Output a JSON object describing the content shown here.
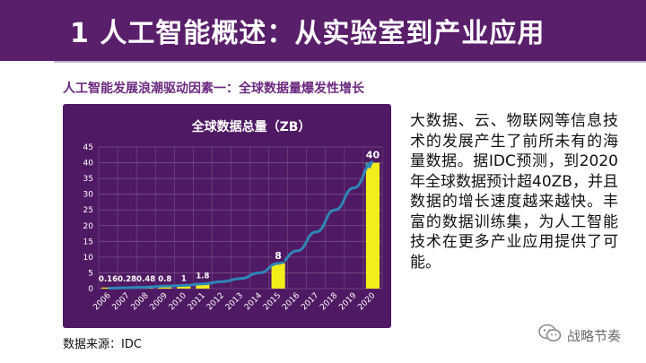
{
  "slide": {
    "title": "1 人工智能概述：从实验室到产业应用",
    "subtitle": "人工智能发展浪潮驱动因素一：全球数据量爆发性增长",
    "description": "大数据、云、物联网等信息技术的发展产生了前所未有的海量数据。据IDC预测，到2020年全球数据预计超40ZB，并且数据的增长速度越来越快。丰富的数据训练集，为人工智能技术在更多产业应用提供了可能。",
    "source": "数据来源：IDC",
    "brand": "战略节奏"
  },
  "colors": {
    "title_bg": "#5a1f6b",
    "panel_bg": "#4f1a63",
    "bar": "#f2ee1a",
    "curve": "#2f86b8",
    "grid": "#7a4d88",
    "label": "#ffffff",
    "subtitle": "#6b2a7f"
  },
  "chart_data": {
    "type": "bar",
    "title": "全球数据总量（ZB）",
    "categories": [
      "2006",
      "2007",
      "2008",
      "2009",
      "2010",
      "2011",
      "2012",
      "2013",
      "2014",
      "2015",
      "2016",
      "2017",
      "2018",
      "2019",
      "2020"
    ],
    "values": [
      0.16,
      0.28,
      0.48,
      0.8,
      1,
      1.8,
      null,
      null,
      null,
      8,
      null,
      null,
      null,
      null,
      40
    ],
    "data_labels": [
      "0.16",
      "0.28",
      "0.48",
      "0.8",
      "1",
      "1.8",
      "",
      "",
      "",
      "8",
      "",
      "",
      "",
      "",
      "40"
    ],
    "trend_curve": [
      0.16,
      0.28,
      0.48,
      0.8,
      1.0,
      1.5,
      2.2,
      3.2,
      5.0,
      8.0,
      12.0,
      18.0,
      25.0,
      32.0,
      40.0
    ],
    "ylim": [
      0,
      45
    ],
    "yticks": [
      "0",
      "5",
      "10",
      "15",
      "20",
      "25",
      "30",
      "35",
      "40",
      "45"
    ],
    "xlabel": "",
    "ylabel": "",
    "grid": true,
    "legend": "none"
  }
}
